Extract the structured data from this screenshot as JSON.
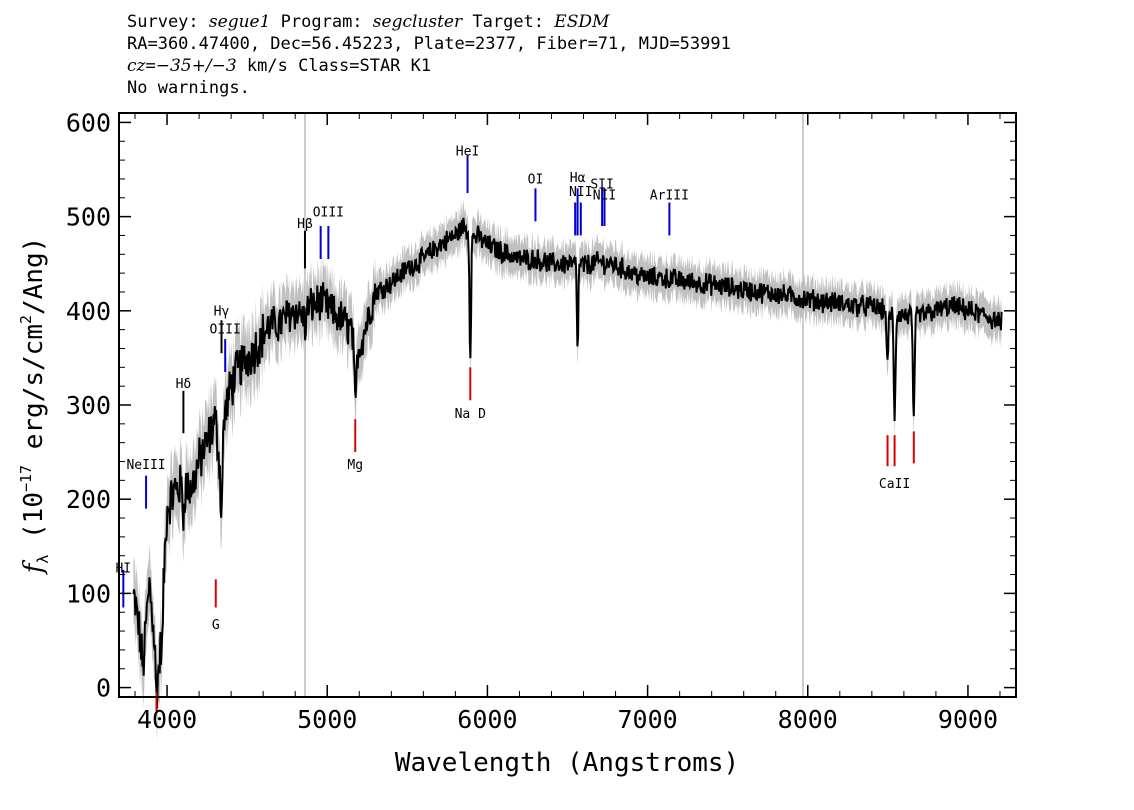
{
  "header": {
    "survey_label": "Survey:",
    "survey_value": "segue1",
    "program_label": "Program:",
    "program_value": "segcluster",
    "target_label": "Target:",
    "target_value": "ESDM",
    "line2": "RA=360.47400, Dec=56.45223, Plate=2377, Fiber=71, MJD=53991",
    "cz_symbol": "cz",
    "cz_eq": "=",
    "cz_value": "−35+/−3",
    "cz_rest": " km/s Class=STAR K1",
    "line4": "No warnings."
  },
  "chart_data": {
    "type": "line",
    "xlabel": "Wavelength (Angstroms)",
    "ylabel_f": "f",
    "ylabel_sub": "λ",
    "ylabel_pre": " (10",
    "ylabel_exp": "−17",
    "ylabel_mid": " erg/s/cm",
    "ylabel_sq": "2",
    "ylabel_post": "/Ang)",
    "xlim": [
      3700,
      9300
    ],
    "ylim": [
      -10,
      610
    ],
    "xticks": [
      "4000",
      "5000",
      "6000",
      "7000",
      "8000",
      "9000"
    ],
    "yticks": [
      "0",
      "100",
      "200",
      "300",
      "400",
      "500",
      "600"
    ],
    "vertical_guides": [
      4861,
      7970
    ],
    "spectrum_anchors": [
      [
        3790,
        95
      ],
      [
        3810,
        80
      ],
      [
        3830,
        55
      ],
      [
        3850,
        20
      ],
      [
        3870,
        70
      ],
      [
        3890,
        110
      ],
      [
        3910,
        75
      ],
      [
        3930,
        30
      ],
      [
        3950,
        15
      ],
      [
        3970,
        80
      ],
      [
        4000,
        190
      ],
      [
        4050,
        210
      ],
      [
        4100,
        215
      ],
      [
        4150,
        210
      ],
      [
        4200,
        240
      ],
      [
        4250,
        260
      ],
      [
        4300,
        285
      ],
      [
        4330,
        240
      ],
      [
        4360,
        290
      ],
      [
        4400,
        320
      ],
      [
        4450,
        340
      ],
      [
        4500,
        350
      ],
      [
        4550,
        360
      ],
      [
        4600,
        375
      ],
      [
        4650,
        385
      ],
      [
        4700,
        385
      ],
      [
        4750,
        395
      ],
      [
        4800,
        400
      ],
      [
        4850,
        395
      ],
      [
        4900,
        405
      ],
      [
        4950,
        410
      ],
      [
        5000,
        405
      ],
      [
        5050,
        395
      ],
      [
        5100,
        390
      ],
      [
        5170,
        375
      ],
      [
        5200,
        360
      ],
      [
        5250,
        390
      ],
      [
        5300,
        420
      ],
      [
        5400,
        430
      ],
      [
        5500,
        445
      ],
      [
        5600,
        455
      ],
      [
        5700,
        470
      ],
      [
        5800,
        480
      ],
      [
        5850,
        490
      ],
      [
        5900,
        480
      ],
      [
        5950,
        478
      ],
      [
        6000,
        470
      ],
      [
        6100,
        462
      ],
      [
        6200,
        455
      ],
      [
        6300,
        455
      ],
      [
        6400,
        450
      ],
      [
        6500,
        450
      ],
      [
        6600,
        448
      ],
      [
        6700,
        452
      ],
      [
        6800,
        448
      ],
      [
        6900,
        440
      ],
      [
        7000,
        435
      ],
      [
        7100,
        435
      ],
      [
        7200,
        432
      ],
      [
        7300,
        430
      ],
      [
        7400,
        428
      ],
      [
        7500,
        425
      ],
      [
        7600,
        422
      ],
      [
        7700,
        420
      ],
      [
        7800,
        418
      ],
      [
        7900,
        415
      ],
      [
        8000,
        412
      ],
      [
        8100,
        410
      ],
      [
        8200,
        408
      ],
      [
        8300,
        405
      ],
      [
        8400,
        405
      ],
      [
        8480,
        400
      ],
      [
        8600,
        395
      ],
      [
        8700,
        395
      ],
      [
        8800,
        400
      ],
      [
        8900,
        405
      ],
      [
        9000,
        400
      ],
      [
        9100,
        395
      ],
      [
        9200,
        388
      ]
    ],
    "absorption_dips": [
      {
        "x": 4340,
        "depth": 70,
        "w": 8
      },
      {
        "x": 4102,
        "depth": 35,
        "w": 6
      },
      {
        "x": 3934,
        "depth": 40,
        "w": 6
      },
      {
        "x": 3969,
        "depth": 40,
        "w": 6
      },
      {
        "x": 5175,
        "depth": 75,
        "w": 10
      },
      {
        "x": 5893,
        "depth": 125,
        "w": 7
      },
      {
        "x": 6563,
        "depth": 90,
        "w": 6
      },
      {
        "x": 8498,
        "depth": 60,
        "w": 7
      },
      {
        "x": 8542,
        "depth": 110,
        "w": 8
      },
      {
        "x": 8662,
        "depth": 110,
        "w": 8
      },
      {
        "x": 4861,
        "depth": 20,
        "w": 6
      }
    ],
    "emission_lines": [
      {
        "label": "HI",
        "wave": 3727,
        "y_top": 125,
        "y_bot": 85,
        "color": "#0000dd",
        "label_y": 122
      },
      {
        "label": "NeIII",
        "wave": 3869,
        "y_top": 225,
        "y_bot": 190,
        "color": "#0000dd",
        "label_y": 232
      },
      {
        "label": "Hδ",
        "wave": 4102,
        "y_top": 315,
        "y_bot": 270,
        "color": "#000000",
        "label_y": 318
      },
      {
        "label": "Hγ",
        "wave": 4340,
        "y_top": 390,
        "y_bot": 355,
        "color": "#000000",
        "label_y": 395
      },
      {
        "label": "OIII",
        "wave": 4363,
        "y_top": 370,
        "y_bot": 335,
        "color": "#0000dd",
        "label_y": 376
      },
      {
        "label": "Hβ",
        "wave": 4861,
        "y_top": 485,
        "y_bot": 445,
        "color": "#000000",
        "label_y": 488
      },
      {
        "label": "OIII",
        "wave": 4959,
        "y_top": 490,
        "y_bot": 455,
        "color": "#0000dd",
        "label_y": 0
      },
      {
        "label": "OIII",
        "wave": 5007,
        "y_top": 490,
        "y_bot": 455,
        "color": "#0000dd",
        "label_y": 500
      },
      {
        "label": "HeI",
        "wave": 5876,
        "y_top": 565,
        "y_bot": 525,
        "color": "#0000dd",
        "label_y": 565
      },
      {
        "label": "OI",
        "wave": 6300,
        "y_top": 530,
        "y_bot": 495,
        "color": "#0000dd",
        "label_y": 535
      },
      {
        "label": "NII",
        "wave": 6548,
        "y_top": 515,
        "y_bot": 480,
        "color": "#0000dd",
        "label_y": 0
      },
      {
        "label": "Hα",
        "wave": 6563,
        "y_top": 530,
        "y_bot": 480,
        "color": "#0000dd",
        "label_y": 537
      },
      {
        "label": "NII",
        "wave": 6583,
        "y_top": 515,
        "y_bot": 480,
        "color": "#0000dd",
        "label_y": 522
      },
      {
        "label": "SII",
        "wave": 6716,
        "y_top": 530,
        "y_bot": 490,
        "color": "#0000dd",
        "label_y": 530
      },
      {
        "label": "NII",
        "wave": 6731,
        "y_top": 530,
        "y_bot": 490,
        "color": "#0000dd",
        "label_y": 518
      },
      {
        "label": "ArIII",
        "wave": 7136,
        "y_top": 515,
        "y_bot": 480,
        "color": "#0000dd",
        "label_y": 518
      }
    ],
    "absorption_lines": [
      {
        "label": "G",
        "wave": 4304,
        "y_top": 115,
        "y_bot": 85,
        "color": "#dd0000",
        "label_y": 62
      },
      {
        "label": "Mg",
        "wave": 5175,
        "y_top": 285,
        "y_bot": 250,
        "color": "#dd0000",
        "label_y": 232
      },
      {
        "label": "Na D",
        "wave": 5893,
        "y_top": 340,
        "y_bot": 305,
        "color": "#dd0000",
        "label_y": 286
      },
      {
        "label": "CaII",
        "wave": 8498,
        "y_top": 268,
        "y_bot": 235,
        "color": "#dd0000",
        "label_y": 0
      },
      {
        "label": "CaII",
        "wave": 8542,
        "y_top": 268,
        "y_bot": 235,
        "color": "#dd0000",
        "label_y": 212
      },
      {
        "label": "CaII",
        "wave": 8662,
        "y_top": 272,
        "y_bot": 238,
        "color": "#dd0000",
        "label_y": 0
      },
      {
        "label": "CaII",
        "wave": 3934,
        "y_top": -5,
        "y_bot": -25,
        "color": "#dd0000",
        "label_y": 0
      }
    ]
  }
}
